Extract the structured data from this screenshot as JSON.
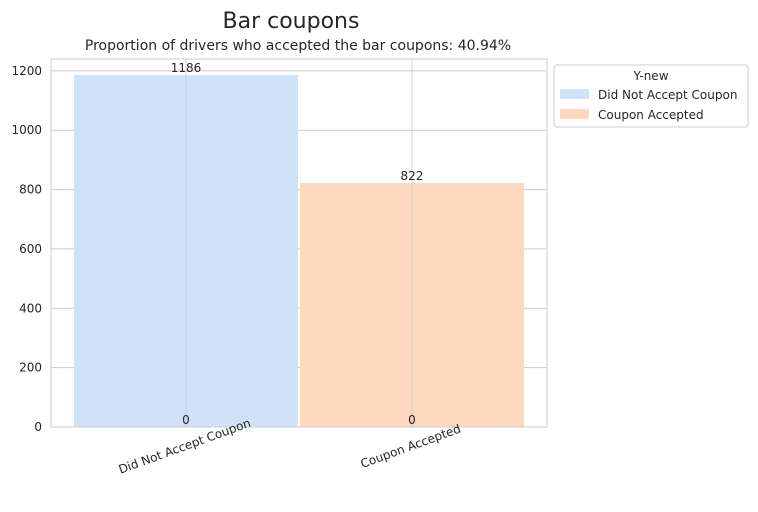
{
  "chart_data": {
    "type": "bar",
    "title": "Bar coupons",
    "subtitle": "Proportion of drivers who accepted the bar coupons: 40.94%",
    "xlabel": "",
    "ylabel": "",
    "categories": [
      "Did Not Accept Coupon",
      "Coupon Accepted"
    ],
    "values": [
      1186,
      822
    ],
    "bar_labels": [
      "1186",
      "822"
    ],
    "base_labels": [
      "0",
      "0"
    ],
    "colors": [
      "#cfe2f8",
      "#ffd9bf"
    ],
    "ylim": [
      0,
      1240
    ],
    "yticks": [
      0,
      200,
      400,
      600,
      800,
      1000,
      1200
    ],
    "grid": true,
    "legend": {
      "title": "Y-new",
      "placement": "outside-top-right",
      "entries": [
        "Did Not Accept Coupon",
        "Coupon Accepted"
      ]
    }
  }
}
